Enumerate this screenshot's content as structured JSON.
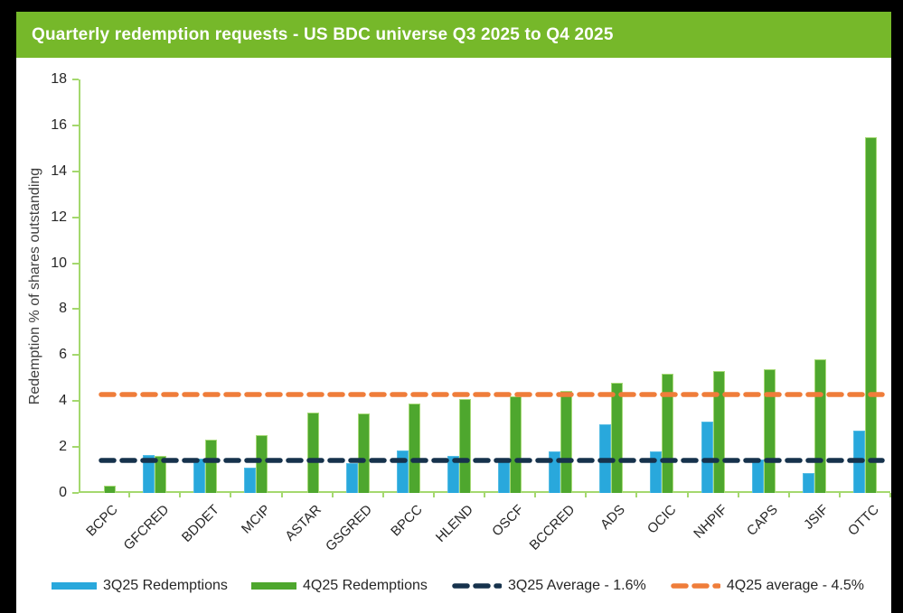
{
  "title": "Quarterly redemption requests - US BDC universe Q3 2025 to Q4 2025",
  "colors": {
    "banner_green": "#76b82a",
    "bar_blue": "#29a8dc",
    "bar_green": "#4ea72e",
    "avg_navy": "#16324c",
    "avg_orange": "#ef7d3a",
    "axis_green": "#a4d86e",
    "text_dark": "#262626"
  },
  "chart_data": {
    "type": "bar",
    "title": "Quarterly redemption requests - US BDC universe Q3 2025 to Q4 2025",
    "categories": [
      "BCPC",
      "GFCRED",
      "BDDET",
      "MCIP",
      "ASTAR",
      "GSGRED",
      "BPCC",
      "HLEND",
      "OSCF",
      "BCCRED",
      "ADS",
      "OCIC",
      "NHPIF",
      "CAPS",
      "JSIF",
      "OTTC"
    ],
    "series": [
      {
        "name": "3Q25 Redemptions",
        "color": "#29a8dc",
        "values": [
          0,
          1.65,
          1.5,
          1.1,
          0,
          1.3,
          1.85,
          1.6,
          1.45,
          1.8,
          3.0,
          1.8,
          3.1,
          1.45,
          0.85,
          2.7
        ]
      },
      {
        "name": "4Q25 Redemptions",
        "color": "#4ea72e",
        "values": [
          0.3,
          1.6,
          2.3,
          2.5,
          3.5,
          3.45,
          3.9,
          4.1,
          4.2,
          4.45,
          4.8,
          5.2,
          5.3,
          5.4,
          5.8,
          15.5
        ]
      }
    ],
    "reference_lines": [
      {
        "name": "3Q25 Average - 1.6%",
        "value": 1.6,
        "color": "#16324c",
        "style": "dashed"
      },
      {
        "name": "4Q25 average - 4.5%",
        "value": 4.5,
        "color": "#ef7d3a",
        "style": "dashed"
      }
    ],
    "xlabel": "",
    "ylabel": "Redemption % of shares outstanding",
    "ylim": [
      0,
      18
    ],
    "ytick_step": 2,
    "grid": false,
    "legend_position": "bottom"
  },
  "legend": {
    "items": [
      {
        "label": "3Q25 Redemptions",
        "swatch": "solid",
        "color": "#29a8dc"
      },
      {
        "label": "4Q25 Redemptions",
        "swatch": "solid",
        "color": "#4ea72e"
      },
      {
        "label": "3Q25 Average - 1.6%",
        "swatch": "dashed",
        "color": "#16324c"
      },
      {
        "label": "4Q25 average - 4.5%",
        "swatch": "dashed",
        "color": "#ef7d3a"
      }
    ]
  }
}
